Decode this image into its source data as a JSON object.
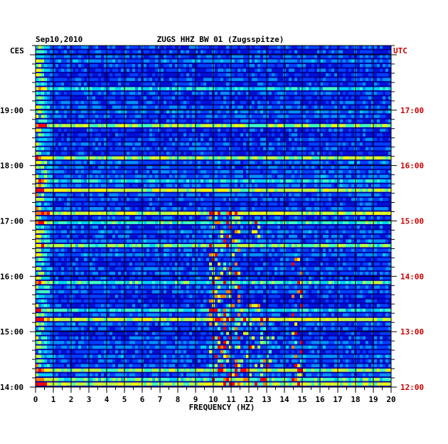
{
  "chart_data": {
    "type": "heatmap",
    "date": "Sep10,2010",
    "title": "ZUGS HHZ BW 01 (Zugsspitze)",
    "xlabel": "FREQUENCY (HZ)",
    "x_ticks": [
      0,
      1,
      2,
      3,
      4,
      5,
      6,
      7,
      8,
      9,
      10,
      11,
      12,
      13,
      14,
      15,
      16,
      17,
      18,
      19,
      20
    ],
    "xlim": [
      0,
      20
    ],
    "left_axis": {
      "timezone": "CES",
      "ticks": [
        "19:00",
        "18:00",
        "17:00",
        "16:00",
        "15:00",
        "14:00"
      ],
      "range": [
        "14:00",
        "20:10"
      ]
    },
    "right_axis": {
      "timezone": "UTC",
      "ticks": [
        "17:00",
        "16:00",
        "15:00",
        "14:00",
        "13:00",
        "12:00"
      ],
      "range": [
        "12:00",
        "18:10"
      ]
    },
    "colormap": [
      "#0000a0",
      "#0010d8",
      "#0040ff",
      "#0090ff",
      "#00d0ff",
      "#40ffc0",
      "#c0ff40",
      "#ffff00",
      "#ff8000",
      "#ff0000"
    ],
    "background_level": "low (dark blue)",
    "features": [
      {
        "desc": "strong low-frequency energy",
        "freq_hz": [
          0,
          1
        ],
        "time_ces": [
          "14:00",
          "20:10"
        ]
      },
      {
        "desc": "banded lines",
        "freq_hz": [
          9.8,
          11.5
        ],
        "time_ces": [
          "14:10",
          "17:10"
        ]
      },
      {
        "desc": "spikes",
        "freq_hz": [
          14.4,
          15
        ],
        "time_ces": [
          "14:00",
          "16:30"
        ]
      }
    ]
  }
}
